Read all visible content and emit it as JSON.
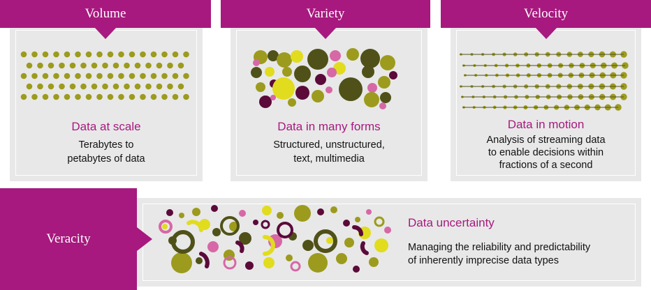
{
  "colors": {
    "accent": "#a7197e",
    "olive": "#9c9b1d",
    "dark_olive": "#4f5118",
    "yellow": "#e1dc1e",
    "dark_purple": "#5b0a3a",
    "pink": "#d668a6",
    "panel": "#e8e8e8"
  },
  "cards": [
    {
      "heading": "Volume",
      "title": "Data at scale",
      "desc_lines": [
        "Terabytes to",
        "petabytes of data"
      ]
    },
    {
      "heading": "Variety",
      "title": "Data in many forms",
      "desc_lines": [
        "Structured, unstructured,",
        "text, multimedia"
      ]
    },
    {
      "heading": "Velocity",
      "title": "Data in motion",
      "desc_lines": [
        "Analysis of streaming data",
        "to enable decisions within",
        "fractions of a second"
      ]
    }
  ],
  "veracity": {
    "heading": "Veracity",
    "title": "Data uncertainty",
    "desc_lines": [
      "Managing the reliability and predictability",
      "of inherently imprecise data types"
    ]
  }
}
